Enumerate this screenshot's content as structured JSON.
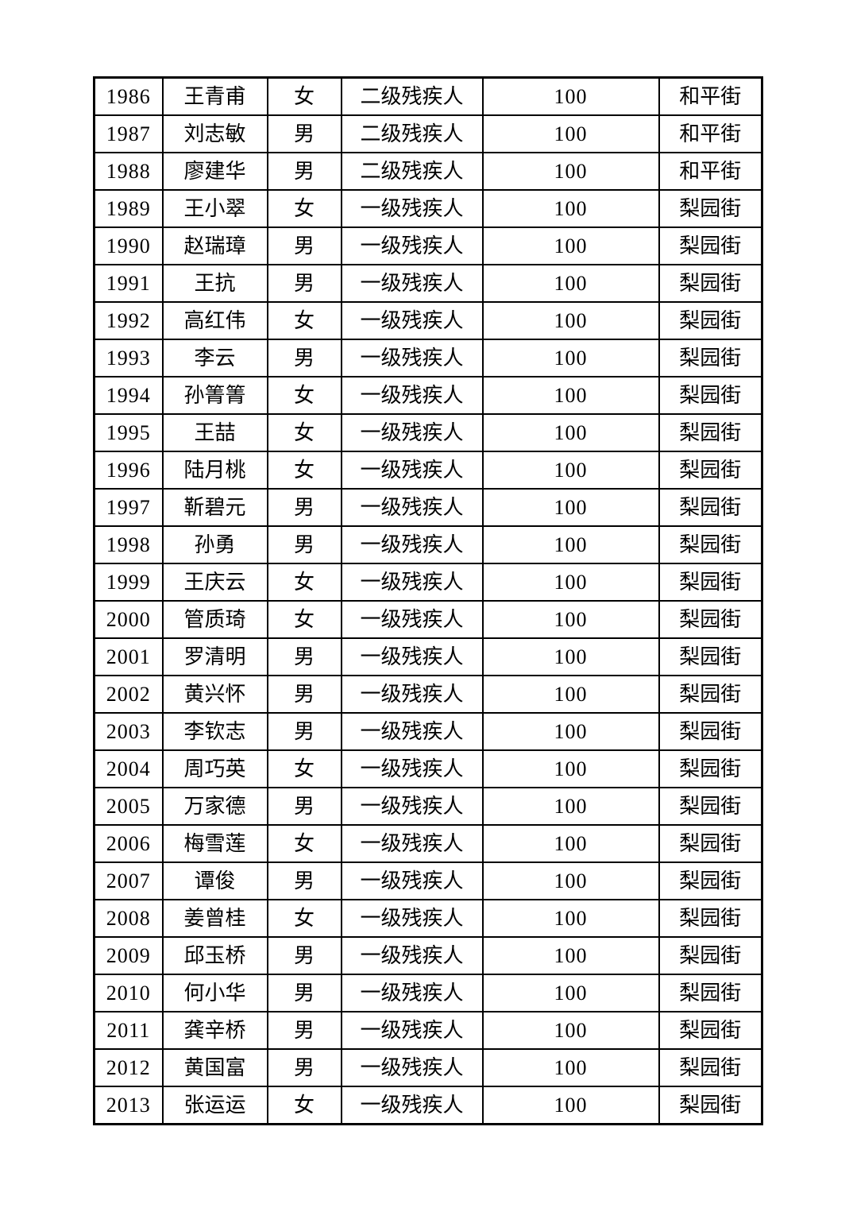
{
  "page": {
    "background_color": "#ffffff",
    "text_color": "#000000",
    "border_color": "#000000"
  },
  "table": {
    "type": "table",
    "column_keys": [
      "serial",
      "name",
      "gender",
      "category",
      "amount",
      "street"
    ],
    "rows": [
      {
        "serial": "1986",
        "name": "王青甫",
        "gender": "女",
        "category": "二级残疾人",
        "amount": "100",
        "street": "和平街"
      },
      {
        "serial": "1987",
        "name": "刘志敏",
        "gender": "男",
        "category": "二级残疾人",
        "amount": "100",
        "street": "和平街"
      },
      {
        "serial": "1988",
        "name": "廖建华",
        "gender": "男",
        "category": "二级残疾人",
        "amount": "100",
        "street": "和平街"
      },
      {
        "serial": "1989",
        "name": "王小翠",
        "gender": "女",
        "category": "一级残疾人",
        "amount": "100",
        "street": "梨园街"
      },
      {
        "serial": "1990",
        "name": "赵瑞璋",
        "gender": "男",
        "category": "一级残疾人",
        "amount": "100",
        "street": "梨园街"
      },
      {
        "serial": "1991",
        "name": "王抗",
        "gender": "男",
        "category": "一级残疾人",
        "amount": "100",
        "street": "梨园街"
      },
      {
        "serial": "1992",
        "name": "高红伟",
        "gender": "女",
        "category": "一级残疾人",
        "amount": "100",
        "street": "梨园街"
      },
      {
        "serial": "1993",
        "name": "李云",
        "gender": "男",
        "category": "一级残疾人",
        "amount": "100",
        "street": "梨园街"
      },
      {
        "serial": "1994",
        "name": "孙箐箐",
        "gender": "女",
        "category": "一级残疾人",
        "amount": "100",
        "street": "梨园街"
      },
      {
        "serial": "1995",
        "name": "王喆",
        "gender": "女",
        "category": "一级残疾人",
        "amount": "100",
        "street": "梨园街"
      },
      {
        "serial": "1996",
        "name": "陆月桃",
        "gender": "女",
        "category": "一级残疾人",
        "amount": "100",
        "street": "梨园街"
      },
      {
        "serial": "1997",
        "name": "靳碧元",
        "gender": "男",
        "category": "一级残疾人",
        "amount": "100",
        "street": "梨园街"
      },
      {
        "serial": "1998",
        "name": "孙勇",
        "gender": "男",
        "category": "一级残疾人",
        "amount": "100",
        "street": "梨园街"
      },
      {
        "serial": "1999",
        "name": "王庆云",
        "gender": "女",
        "category": "一级残疾人",
        "amount": "100",
        "street": "梨园街"
      },
      {
        "serial": "2000",
        "name": "管质琦",
        "gender": "女",
        "category": "一级残疾人",
        "amount": "100",
        "street": "梨园街"
      },
      {
        "serial": "2001",
        "name": "罗清明",
        "gender": "男",
        "category": "一级残疾人",
        "amount": "100",
        "street": "梨园街"
      },
      {
        "serial": "2002",
        "name": "黄兴怀",
        "gender": "男",
        "category": "一级残疾人",
        "amount": "100",
        "street": "梨园街"
      },
      {
        "serial": "2003",
        "name": "李钦志",
        "gender": "男",
        "category": "一级残疾人",
        "amount": "100",
        "street": "梨园街"
      },
      {
        "serial": "2004",
        "name": "周巧英",
        "gender": "女",
        "category": "一级残疾人",
        "amount": "100",
        "street": "梨园街"
      },
      {
        "serial": "2005",
        "name": "万家德",
        "gender": "男",
        "category": "一级残疾人",
        "amount": "100",
        "street": "梨园街"
      },
      {
        "serial": "2006",
        "name": "梅雪莲",
        "gender": "女",
        "category": "一级残疾人",
        "amount": "100",
        "street": "梨园街"
      },
      {
        "serial": "2007",
        "name": "谭俊",
        "gender": "男",
        "category": "一级残疾人",
        "amount": "100",
        "street": "梨园街"
      },
      {
        "serial": "2008",
        "name": "姜曾桂",
        "gender": "女",
        "category": "一级残疾人",
        "amount": "100",
        "street": "梨园街"
      },
      {
        "serial": "2009",
        "name": "邱玉桥",
        "gender": "男",
        "category": "一级残疾人",
        "amount": "100",
        "street": "梨园街"
      },
      {
        "serial": "2010",
        "name": "何小华",
        "gender": "男",
        "category": "一级残疾人",
        "amount": "100",
        "street": "梨园街"
      },
      {
        "serial": "2011",
        "name": "龚辛桥",
        "gender": "男",
        "category": "一级残疾人",
        "amount": "100",
        "street": "梨园街"
      },
      {
        "serial": "2012",
        "name": "黄国富",
        "gender": "男",
        "category": "一级残疾人",
        "amount": "100",
        "street": "梨园街"
      },
      {
        "serial": "2013",
        "name": "张运运",
        "gender": "女",
        "category": "一级残疾人",
        "amount": "100",
        "street": "梨园街"
      }
    ]
  }
}
